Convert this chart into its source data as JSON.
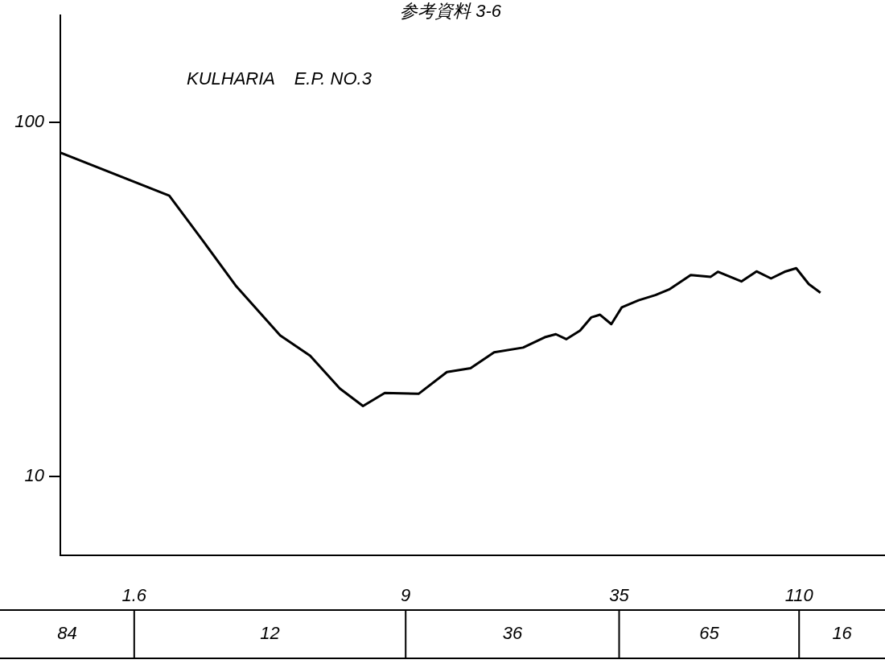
{
  "chart_data": {
    "type": "line",
    "title": "参考資料 3-6",
    "subtitle": "KULHARIA    E.P. NO.3",
    "log": "xy",
    "color": "#000000",
    "marker": "none",
    "line_style": "solid",
    "x": [
      1.0,
      2.0,
      2.51,
      3.05,
      4.05,
      4.9,
      5.92,
      6.86,
      7.88,
      9.77,
      11.7,
      13.6,
      15.8,
      19.0,
      21.8,
      23.4,
      25.0,
      27.3,
      29.3,
      31.0,
      33.3,
      35.6,
      39.6,
      44.1,
      48.1,
      55.2,
      62.7,
      65.6,
      76.2,
      83.9,
      92.0,
      101,
      108,
      117,
      126
    ],
    "values": [
      82,
      62,
      45.4,
      34.6,
      25.0,
      21.9,
      17.7,
      15.8,
      17.2,
      17.1,
      19.7,
      20.2,
      22.4,
      23.1,
      24.7,
      25.2,
      24.4,
      25.8,
      28.1,
      28.6,
      26.9,
      30.0,
      31.4,
      32.5,
      33.7,
      37.0,
      36.6,
      37.8,
      35.5,
      37.9,
      36.2,
      37.9,
      38.7,
      34.9,
      33.0
    ],
    "ylim": [
      6,
      200
    ],
    "xlim": [
      1,
      190
    ],
    "xticks": [
      1.6,
      9,
      35,
      110
    ],
    "yticks": [
      100,
      10
    ],
    "annotations": [
      "84",
      "12",
      "36",
      "65",
      "16"
    ]
  }
}
